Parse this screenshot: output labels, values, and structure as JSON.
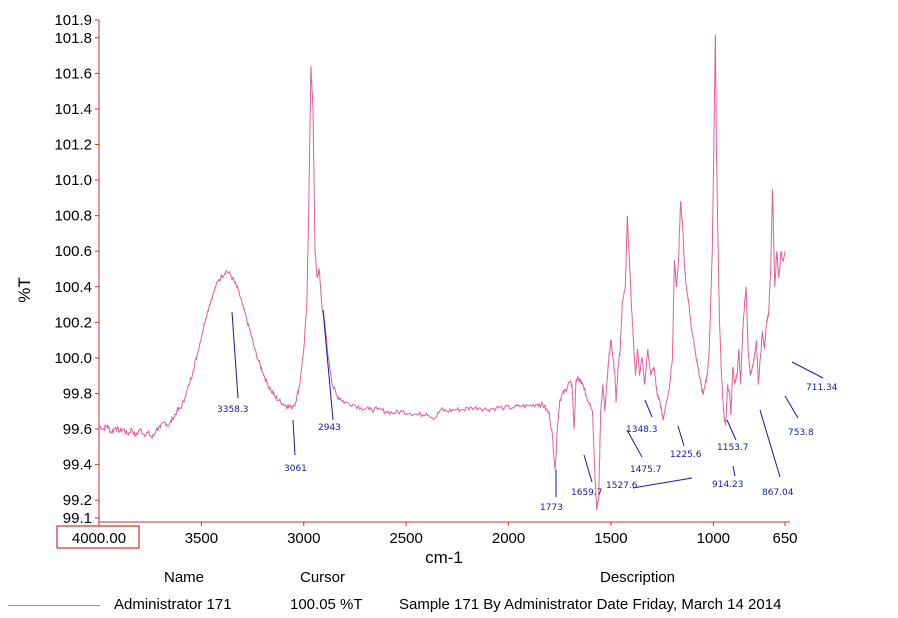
{
  "chart_data": {
    "type": "line",
    "xlabel": "cm-1",
    "ylabel": "%T",
    "xlim": [
      4000,
      650
    ],
    "ylim": [
      99.1,
      101.9
    ],
    "x_reversed": true,
    "grid": false,
    "x_tick_labels": [
      "4000.00",
      "3500",
      "3000",
      "2500",
      "2000",
      "1500",
      "1000",
      "650"
    ],
    "y_tick_labels": [
      "101.9",
      "101.8",
      "101.6",
      "101.4",
      "101.2",
      "101.0",
      "100.8",
      "100.6",
      "100.4",
      "100.2",
      "100.0",
      "99.8",
      "99.6",
      "99.4",
      "99.2",
      "99.1"
    ],
    "line_color": "#e0609c",
    "label_color": "#1a1aa0",
    "axis_color": "#cc3333",
    "series": [
      {
        "name": "Administrator 171",
        "points": [
          [
            4000,
            99.62
          ],
          [
            3980,
            99.6
          ],
          [
            3960,
            99.62
          ],
          [
            3940,
            99.58
          ],
          [
            3920,
            99.61
          ],
          [
            3900,
            99.59
          ],
          [
            3880,
            99.6
          ],
          [
            3860,
            99.57
          ],
          [
            3840,
            99.6
          ],
          [
            3820,
            99.56
          ],
          [
            3800,
            99.6
          ],
          [
            3780,
            99.57
          ],
          [
            3760,
            99.58
          ],
          [
            3740,
            99.55
          ],
          [
            3720,
            99.6
          ],
          [
            3700,
            99.61
          ],
          [
            3680,
            99.64
          ],
          [
            3660,
            99.62
          ],
          [
            3640,
            99.66
          ],
          [
            3620,
            99.7
          ],
          [
            3600,
            99.72
          ],
          [
            3580,
            99.78
          ],
          [
            3560,
            99.85
          ],
          [
            3540,
            99.93
          ],
          [
            3520,
            100.02
          ],
          [
            3500,
            100.12
          ],
          [
            3480,
            100.22
          ],
          [
            3460,
            100.3
          ],
          [
            3440,
            100.37
          ],
          [
            3420,
            100.43
          ],
          [
            3400,
            100.46
          ],
          [
            3380,
            100.49
          ],
          [
            3360,
            100.47
          ],
          [
            3340,
            100.43
          ],
          [
            3320,
            100.38
          ],
          [
            3300,
            100.3
          ],
          [
            3280,
            100.22
          ],
          [
            3260,
            100.14
          ],
          [
            3240,
            100.05
          ],
          [
            3220,
            99.98
          ],
          [
            3200,
            99.92
          ],
          [
            3180,
            99.86
          ],
          [
            3160,
            99.82
          ],
          [
            3140,
            99.78
          ],
          [
            3120,
            99.76
          ],
          [
            3100,
            99.74
          ],
          [
            3080,
            99.73
          ],
          [
            3061,
            99.72
          ],
          [
            3040,
            99.75
          ],
          [
            3020,
            99.85
          ],
          [
            3000,
            100.05
          ],
          [
            2985,
            100.3
          ],
          [
            2975,
            100.9
          ],
          [
            2965,
            101.64
          ],
          [
            2955,
            101.4
          ],
          [
            2945,
            100.6
          ],
          [
            2935,
            100.45
          ],
          [
            2925,
            100.5
          ],
          [
            2912,
            100.3
          ],
          [
            2900,
            100.22
          ],
          [
            2880,
            100.0
          ],
          [
            2860,
            99.85
          ],
          [
            2840,
            99.79
          ],
          [
            2820,
            99.77
          ],
          [
            2800,
            99.75
          ],
          [
            2760,
            99.74
          ],
          [
            2720,
            99.72
          ],
          [
            2680,
            99.71
          ],
          [
            2640,
            99.71
          ],
          [
            2600,
            99.7
          ],
          [
            2560,
            99.69
          ],
          [
            2520,
            99.7
          ],
          [
            2480,
            99.69
          ],
          [
            2440,
            99.68
          ],
          [
            2400,
            99.69
          ],
          [
            2360,
            99.66
          ],
          [
            2330,
            99.71
          ],
          [
            2300,
            99.7
          ],
          [
            2260,
            99.71
          ],
          [
            2220,
            99.71
          ],
          [
            2180,
            99.72
          ],
          [
            2140,
            99.72
          ],
          [
            2100,
            99.71
          ],
          [
            2060,
            99.72
          ],
          [
            2020,
            99.72
          ],
          [
            1980,
            99.72
          ],
          [
            1940,
            99.73
          ],
          [
            1900,
            99.73
          ],
          [
            1860,
            99.74
          ],
          [
            1840,
            99.74
          ],
          [
            1820,
            99.72
          ],
          [
            1800,
            99.68
          ],
          [
            1785,
            99.55
          ],
          [
            1773,
            99.37
          ],
          [
            1762,
            99.6
          ],
          [
            1750,
            99.76
          ],
          [
            1735,
            99.8
          ],
          [
            1720,
            99.82
          ],
          [
            1705,
            99.86
          ],
          [
            1690,
            99.85
          ],
          [
            1680,
            99.6
          ],
          [
            1670,
            99.88
          ],
          [
            1660,
            99.88
          ],
          [
            1650,
            99.87
          ],
          [
            1640,
            99.85
          ],
          [
            1630,
            99.83
          ],
          [
            1620,
            99.78
          ],
          [
            1600,
            99.74
          ],
          [
            1590,
            99.7
          ],
          [
            1580,
            99.4
          ],
          [
            1570,
            99.15
          ],
          [
            1560,
            99.2
          ],
          [
            1550,
            99.7
          ],
          [
            1540,
            99.85
          ],
          [
            1530,
            99.7
          ],
          [
            1520,
            99.85
          ],
          [
            1510,
            100.0
          ],
          [
            1500,
            100.1
          ],
          [
            1490,
            100.0
          ],
          [
            1480,
            99.9
          ],
          [
            1475,
            99.75
          ],
          [
            1465,
            99.95
          ],
          [
            1455,
            100.05
          ],
          [
            1445,
            100.3
          ],
          [
            1430,
            100.4
          ],
          [
            1420,
            100.8
          ],
          [
            1410,
            100.55
          ],
          [
            1400,
            100.3
          ],
          [
            1390,
            100.1
          ],
          [
            1380,
            99.9
          ],
          [
            1370,
            100.05
          ],
          [
            1360,
            99.9
          ],
          [
            1348,
            100.0
          ],
          [
            1335,
            99.85
          ],
          [
            1320,
            100.05
          ],
          [
            1305,
            99.9
          ],
          [
            1290,
            99.95
          ],
          [
            1275,
            99.8
          ],
          [
            1260,
            99.75
          ],
          [
            1245,
            99.65
          ],
          [
            1230,
            99.75
          ],
          [
            1215,
            99.82
          ],
          [
            1200,
            100.0
          ],
          [
            1190,
            100.55
          ],
          [
            1180,
            100.4
          ],
          [
            1170,
            100.55
          ],
          [
            1160,
            100.88
          ],
          [
            1150,
            100.75
          ],
          [
            1140,
            100.5
          ],
          [
            1130,
            100.38
          ],
          [
            1120,
            100.3
          ],
          [
            1105,
            100.15
          ],
          [
            1090,
            100.05
          ],
          [
            1075,
            99.95
          ],
          [
            1060,
            99.85
          ],
          [
            1050,
            99.8
          ],
          [
            1040,
            99.85
          ],
          [
            1030,
            99.9
          ],
          [
            1020,
            100.05
          ],
          [
            1005,
            100.6
          ],
          [
            995,
            101.4
          ],
          [
            990,
            101.82
          ],
          [
            985,
            101.2
          ],
          [
            978,
            100.7
          ],
          [
            970,
            100.2
          ],
          [
            960,
            99.9
          ],
          [
            950,
            99.7
          ],
          [
            940,
            99.62
          ],
          [
            930,
            99.85
          ],
          [
            920,
            99.8
          ],
          [
            914,
            99.68
          ],
          [
            905,
            99.95
          ],
          [
            895,
            99.85
          ],
          [
            885,
            99.9
          ],
          [
            875,
            100.05
          ],
          [
            867,
            99.85
          ],
          [
            858,
            100.1
          ],
          [
            848,
            100.3
          ],
          [
            840,
            100.4
          ],
          [
            830,
            100.05
          ],
          [
            820,
            99.9
          ],
          [
            810,
            99.95
          ],
          [
            800,
            100.0
          ],
          [
            790,
            100.1
          ],
          [
            780,
            99.85
          ],
          [
            770,
            100.0
          ],
          [
            760,
            100.15
          ],
          [
            750,
            100.05
          ],
          [
            740,
            100.2
          ],
          [
            730,
            100.25
          ],
          [
            720,
            100.5
          ],
          [
            711,
            100.95
          ],
          [
            700,
            100.4
          ],
          [
            690,
            100.6
          ],
          [
            680,
            100.45
          ],
          [
            670,
            100.6
          ],
          [
            660,
            100.55
          ],
          [
            650,
            100.6
          ]
        ]
      }
    ],
    "peak_labels": [
      "3358.3",
      "3061",
      "2943",
      "1773",
      "1659.7",
      "1527.6",
      "1475.7",
      "1348.3",
      "1225.6",
      "1153.7",
      "914.23",
      "867.04",
      "753.8",
      "711.34"
    ]
  },
  "legend": {
    "headers": {
      "name": "Name",
      "cursor": "Cursor",
      "description": "Description"
    },
    "name": "Administrator 171",
    "cursor": "100.05 %T",
    "description": "Sample 171 By Administrator Date Friday, March 14 2014"
  }
}
